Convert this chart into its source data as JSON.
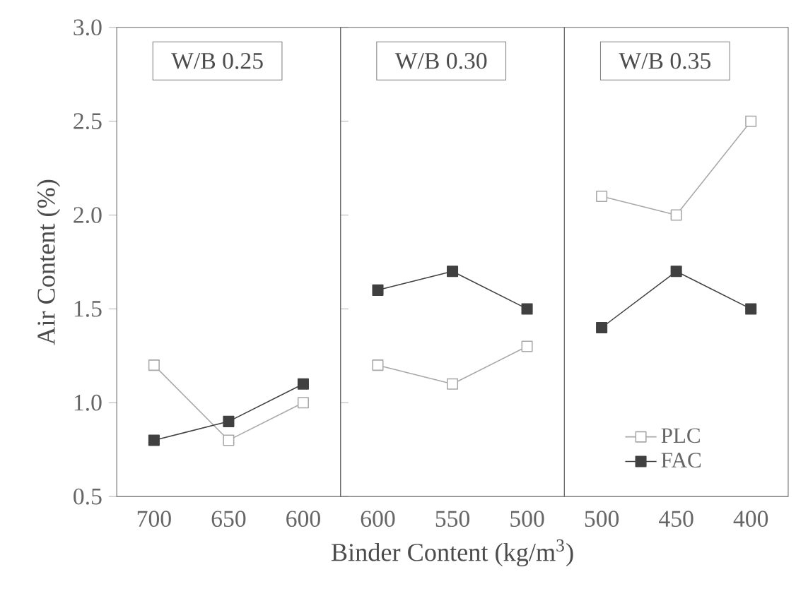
{
  "chart_data": [
    {
      "type": "line",
      "title": "W/B 0.25",
      "ylabel": "Air Content (%)",
      "categories": [
        "700",
        "650",
        "600"
      ],
      "marker": "square",
      "series": [
        {
          "color": "#a8a8a8",
          "values": [
            1.2,
            0.8,
            1.0
          ]
        },
        {
          "color": "#404040",
          "values": [
            0.8,
            0.9,
            1.1
          ]
        }
      ],
      "ylim": [
        0.5,
        3.0
      ],
      "yticks": [
        {
          "value": 0.5,
          "label": "0.5"
        },
        {
          "value": 1,
          "label": "1.0"
        },
        {
          "value": 1.5,
          "label": "1.5"
        },
        {
          "value": 2,
          "label": "2.0"
        },
        {
          "value": 2.5,
          "label": "2.5"
        },
        {
          "value": 3,
          "label": "3.0"
        }
      ]
    },
    {
      "type": "line",
      "title": "W/B 0.30",
      "xlabel": "Binder Content (kg/m$^{3}$)",
      "categories": [
        "600",
        "550",
        "500"
      ],
      "marker": "square",
      "tick_labels": "x",
      "series": [
        {
          "color": "#a8a8a8",
          "values": [
            1.2,
            1.1,
            1.3
          ]
        },
        {
          "color": "#404040",
          "values": [
            1.6,
            1.7,
            1.5
          ]
        }
      ],
      "ylim": [
        0.5,
        3.0
      ]
    },
    {
      "type": "line",
      "title": "W/B 0.35",
      "categories": [
        "500",
        "450",
        "400"
      ],
      "marker": "square",
      "tick_labels": "x",
      "legend": "bottom",
      "series": [
        {
          "name": "PLC",
          "color": "#a8a8a8",
          "values": [
            2.1,
            2.0,
            2.5
          ]
        },
        {
          "name": "FAC",
          "color": "#404040",
          "values": [
            1.4,
            1.7,
            1.5
          ]
        }
      ],
      "ylim": [
        0.5,
        3.0
      ]
    }
  ]
}
